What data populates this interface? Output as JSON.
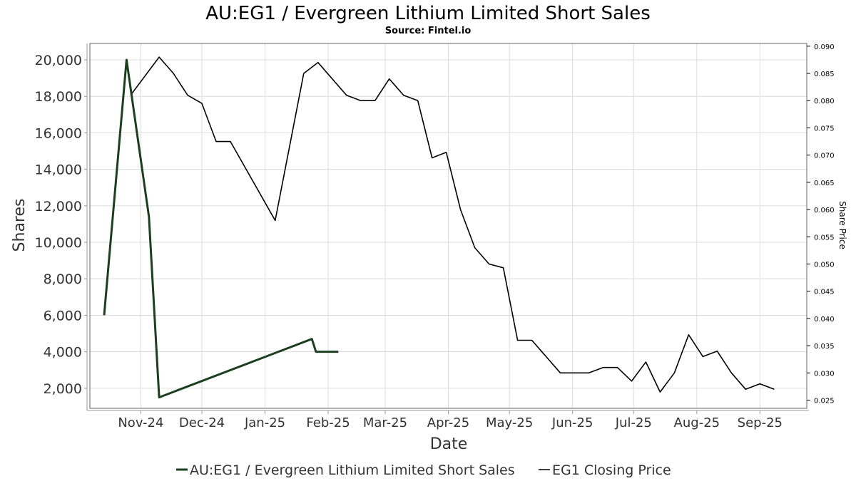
{
  "chart_data": {
    "type": "line",
    "title": "AU:EG1 / Evergreen Lithium Limited Short Sales",
    "subtitle": "Source: Fintel.io",
    "xlabel": "Date",
    "ylabel": "Shares",
    "y2label": "Share Price",
    "xlim": [
      "2024-10-07",
      "2025-09-24"
    ],
    "ylim": [
      900,
      20900
    ],
    "y2lim": [
      0.0235,
      0.0905
    ],
    "x_ticks": [
      {
        "date": "2024-11-01",
        "label": "Nov-24"
      },
      {
        "date": "2024-12-01",
        "label": "Dec-24"
      },
      {
        "date": "2025-01-01",
        "label": "Jan-25"
      },
      {
        "date": "2025-02-01",
        "label": "Feb-25"
      },
      {
        "date": "2025-03-01",
        "label": "Mar-25"
      },
      {
        "date": "2025-04-01",
        "label": "Apr-25"
      },
      {
        "date": "2025-05-01",
        "label": "May-25"
      },
      {
        "date": "2025-06-01",
        "label": "Jun-25"
      },
      {
        "date": "2025-07-01",
        "label": "Jul-25"
      },
      {
        "date": "2025-08-01",
        "label": "Aug-25"
      },
      {
        "date": "2025-09-01",
        "label": "Sep-25"
      }
    ],
    "y_ticks": [
      2000,
      4000,
      6000,
      8000,
      10000,
      12000,
      14000,
      16000,
      18000,
      20000
    ],
    "y_tick_labels": [
      "2,000",
      "4,000",
      "6,000",
      "8,000",
      "10,000",
      "12,000",
      "14,000",
      "16,000",
      "18,000",
      "20,000"
    ],
    "y2_ticks": [
      0.025,
      0.03,
      0.035,
      0.04,
      0.045,
      0.05,
      0.055,
      0.06,
      0.065,
      0.07,
      0.075,
      0.08,
      0.085,
      0.09
    ],
    "y2_tick_labels": [
      "0.025",
      "0.030",
      "0.035",
      "0.040",
      "0.045",
      "0.050",
      "0.055",
      "0.060",
      "0.065",
      "0.070",
      "0.075",
      "0.080",
      "0.085",
      "0.090"
    ],
    "grid": true,
    "legend_position": "bottom",
    "series": [
      {
        "name": "AU:EG1 / Evergreen Lithium Limited Short Sales",
        "axis": "left",
        "color": "#1b3f1f",
        "points": [
          [
            "2024-10-14",
            6000
          ],
          [
            "2024-10-25",
            20000
          ],
          [
            "2024-11-05",
            11400
          ],
          [
            "2024-11-10",
            1500
          ],
          [
            "2025-01-24",
            4700
          ],
          [
            "2025-01-26",
            4000
          ],
          [
            "2025-02-06",
            4000
          ]
        ]
      },
      {
        "name": "EG1 Closing Price",
        "axis": "right",
        "color": "#000000",
        "points": [
          [
            "2024-10-27",
            0.081
          ],
          [
            "2024-11-10",
            0.088
          ],
          [
            "2024-11-17",
            0.085
          ],
          [
            "2024-11-24",
            0.081
          ],
          [
            "2024-12-01",
            0.0795
          ],
          [
            "2024-12-08",
            0.0725
          ],
          [
            "2024-12-15",
            0.0725
          ],
          [
            "2025-01-06",
            0.058
          ],
          [
            "2025-01-13",
            0.0715
          ],
          [
            "2025-01-20",
            0.085
          ],
          [
            "2025-01-27",
            0.087
          ],
          [
            "2025-02-10",
            0.081
          ],
          [
            "2025-02-17",
            0.08
          ],
          [
            "2025-02-24",
            0.08
          ],
          [
            "2025-03-03",
            0.084
          ],
          [
            "2025-03-10",
            0.081
          ],
          [
            "2025-03-17",
            0.08
          ],
          [
            "2025-03-24",
            0.0695
          ],
          [
            "2025-03-31",
            0.0705
          ],
          [
            "2025-04-07",
            0.06
          ],
          [
            "2025-04-14",
            0.053
          ],
          [
            "2025-04-21",
            0.05
          ],
          [
            "2025-04-28",
            0.0493
          ],
          [
            "2025-05-05",
            0.036
          ],
          [
            "2025-05-12",
            0.036
          ],
          [
            "2025-05-26",
            0.03
          ],
          [
            "2025-06-02",
            0.03
          ],
          [
            "2025-06-09",
            0.03
          ],
          [
            "2025-06-16",
            0.031
          ],
          [
            "2025-06-23",
            0.031
          ],
          [
            "2025-06-30",
            0.0285
          ],
          [
            "2025-07-07",
            0.032
          ],
          [
            "2025-07-14",
            0.0265
          ],
          [
            "2025-07-21",
            0.03
          ],
          [
            "2025-07-28",
            0.037
          ],
          [
            "2025-08-04",
            0.033
          ],
          [
            "2025-08-11",
            0.034
          ],
          [
            "2025-08-18",
            0.03
          ],
          [
            "2025-08-25",
            0.027
          ],
          [
            "2025-09-01",
            0.028
          ],
          [
            "2025-09-08",
            0.027
          ]
        ]
      }
    ]
  }
}
